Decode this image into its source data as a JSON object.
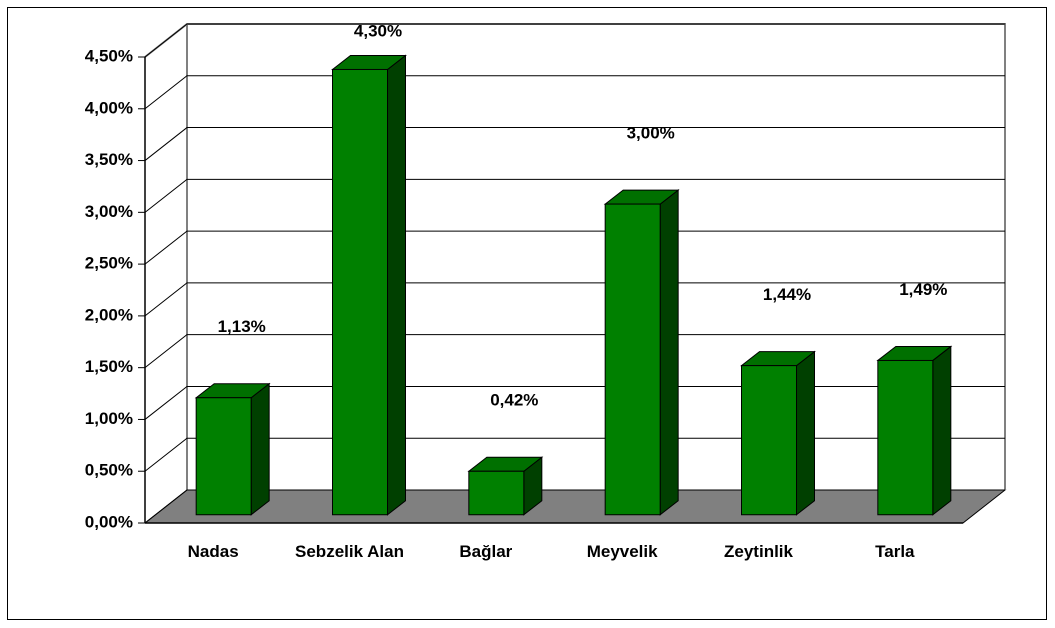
{
  "chart_data": {
    "type": "bar3d",
    "categories": [
      "Nadas",
      "Sebzelik Alan",
      "Bağlar",
      "Meyvelik",
      "Zeytinlik",
      "Tarla"
    ],
    "values": [
      1.13,
      4.3,
      0.42,
      3.0,
      1.44,
      1.49
    ],
    "value_labels": [
      "1,13%",
      "4,30%",
      "0,42%",
      "3,00%",
      "1,44%",
      "1,49%"
    ],
    "color": "#008000",
    "ylim": [
      0,
      4.5
    ],
    "yticks": [
      {
        "value": 0,
        "label": "0,00%"
      },
      {
        "value": 0.5,
        "label": "0,50%"
      },
      {
        "value": 1,
        "label": "1,00%"
      },
      {
        "value": 1.5,
        "label": "1,50%"
      },
      {
        "value": 2,
        "label": "2,00%"
      },
      {
        "value": 2.5,
        "label": "2,50%"
      },
      {
        "value": 3,
        "label": "3,00%"
      },
      {
        "value": 3.5,
        "label": "3,50%"
      },
      {
        "value": 4,
        "label": "4,00%"
      },
      {
        "value": 4.5,
        "label": "4,50%"
      }
    ],
    "grid": true
  }
}
